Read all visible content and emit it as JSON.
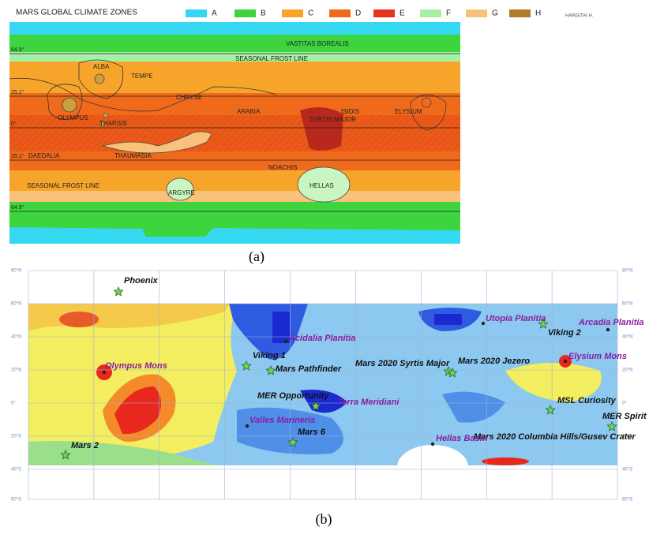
{
  "panel_a": {
    "title": "MARS GLOBAL CLIMATE ZONES",
    "legend": [
      {
        "label": "A",
        "color": "#35d8f0"
      },
      {
        "label": "B",
        "color": "#3ed43e"
      },
      {
        "label": "C",
        "color": "#f7a52a"
      },
      {
        "label": "D",
        "color": "#f06a1c"
      },
      {
        "label": "E",
        "color": "#e8321e"
      },
      {
        "label": "F",
        "color": "#a6f0a6"
      },
      {
        "label": "G",
        "color": "#f9c27a"
      },
      {
        "label": "H",
        "color": "#b27a2a"
      }
    ],
    "credit": "HARGITAI H.",
    "latitudes": [
      "64.9°",
      "25.1°",
      "0°",
      "25.1°",
      "64.9°"
    ],
    "regions": [
      "VASTITAS BOREALIS",
      "SEASONAL FROST LINE",
      "ALBA",
      "TEMPE",
      "CHRYSE",
      "OLYMPUS",
      "THARSIS",
      "ARABIA",
      "SYRTIS MAJOR",
      "ISIDIS",
      "ELYSIUM",
      "DAEDALIA",
      "THAUMASIA",
      "NOACHIS",
      "HELLAS",
      "ARGYRE",
      "SEASONAL FROST LINE"
    ],
    "caption": "(a)"
  },
  "panel_b": {
    "latitudes": [
      "80°N",
      "60°N",
      "40°N",
      "20°N",
      "0°",
      "20°S",
      "40°S",
      "60°S"
    ],
    "sites": [
      "Phoenix",
      "Viking 1",
      "Mars Pathfinder",
      "Acidalia Planitia",
      "Olympus Mons",
      "Mars 2020 Syrtis Major",
      "Mars 2020 Jezero",
      "Utopia Planitia",
      "Viking 2",
      "Arcadia Planitia",
      "Elysium Mons",
      "MER Opportunity",
      "Terra Meridiani",
      "Valles Marineris",
      "MSL Curiosity",
      "MER Spirit",
      "Mars 2020 Columbia Hills/Gusev Crater",
      "Mars 6",
      "Hellas Basin",
      "Mars 2"
    ],
    "caption": "(b)"
  }
}
